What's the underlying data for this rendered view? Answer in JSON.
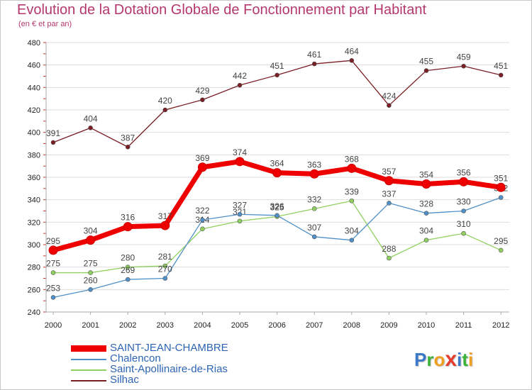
{
  "title": "Evolution de la Dotation Globale de Fonctionnement par Habitant",
  "subtitle": "(en € et par an)",
  "logo": {
    "letters": [
      "P",
      "r",
      "o",
      "x",
      "i",
      "t",
      "i"
    ],
    "colors": [
      "#3c78c8",
      "#3cb43c",
      "#f0a020",
      "#e63c2d",
      "#3c78c8",
      "#3cb43c",
      "#f0a020"
    ]
  },
  "chart_data": {
    "type": "line",
    "title": "Evolution de la Dotation Globale de Fonctionnement par Habitant",
    "subtitle": "(en € et par an)",
    "xlabel": "",
    "ylabel": "",
    "categories": [
      "2000",
      "2001",
      "2002",
      "2003",
      "2004",
      "2005",
      "2006",
      "2007",
      "2008",
      "2009",
      "2010",
      "2011",
      "2012"
    ],
    "ylim": [
      240,
      480
    ],
    "yticks": [
      240,
      260,
      280,
      300,
      320,
      340,
      360,
      380,
      400,
      420,
      440,
      460,
      480
    ],
    "grid": "horizontal",
    "legend_position": "bottom-left",
    "series": [
      {
        "name": "Silhac",
        "color": "#7a1e24",
        "values": [
          391,
          404,
          387,
          420,
          429,
          442,
          451,
          461,
          464,
          424,
          455,
          459,
          451
        ]
      },
      {
        "name": "Saint-Apollinaire-de-Rias",
        "color": "#90d060",
        "values": [
          275,
          275,
          280,
          281,
          314,
          321,
          325,
          332,
          339,
          288,
          304,
          310,
          295
        ]
      },
      {
        "name": "Chalencon",
        "color": "#5090c8",
        "values": [
          253,
          260,
          269,
          270,
          322,
          327,
          326,
          307,
          304,
          337,
          328,
          330,
          342
        ]
      },
      {
        "name": "SAINT-JEAN-CHAMBRE",
        "color": "#ee0000",
        "values": [
          295,
          304,
          316,
          317,
          369,
          374,
          364,
          363,
          368,
          357,
          354,
          356,
          351
        ]
      }
    ],
    "legend_order": [
      "SAINT-JEAN-CHAMBRE",
      "Chalencon",
      "Saint-Apollinaire-de-Rias",
      "Silhac"
    ]
  }
}
